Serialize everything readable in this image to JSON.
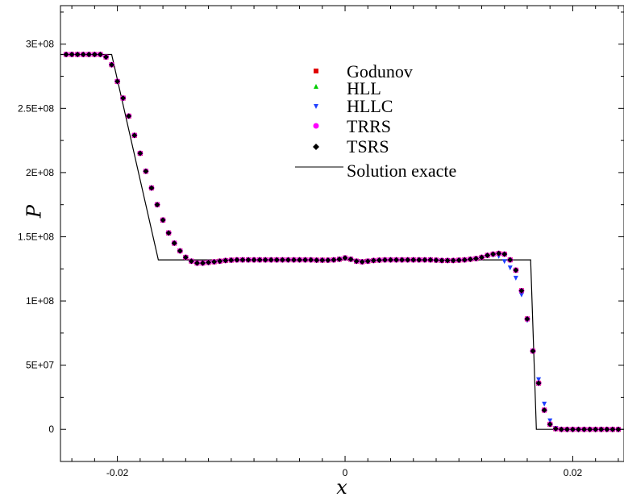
{
  "chart_data": {
    "type": "scatter",
    "title": "",
    "xlabel": "x",
    "ylabel": "P",
    "xlim": [
      -0.025,
      0.0245
    ],
    "ylim": [
      -25000000,
      330000000
    ],
    "grid": false,
    "legend_position": "top-center",
    "x_ticks": [
      {
        "value": -0.02,
        "label": "-0.02"
      },
      {
        "value": 0,
        "label": "0"
      },
      {
        "value": 0.02,
        "label": "0.02"
      }
    ],
    "y_ticks": [
      {
        "value": 0,
        "label": "0"
      },
      {
        "value": 50000000,
        "label": "5E+07"
      },
      {
        "value": 100000000,
        "label": "1E+08"
      },
      {
        "value": 150000000,
        "label": "1.5E+08"
      },
      {
        "value": 200000000,
        "label": "2E+08"
      },
      {
        "value": 250000000,
        "label": "2.5E+08"
      },
      {
        "value": 300000000,
        "label": "3E+08"
      }
    ],
    "series": [
      {
        "name": "Godunov",
        "marker": "square",
        "color": "#e00000"
      },
      {
        "name": "HLL",
        "marker": "triangle-up",
        "color": "#00cc00"
      },
      {
        "name": "HLLC",
        "marker": "triangle-down",
        "color": "#2040ff"
      },
      {
        "name": "TRRS",
        "marker": "circle",
        "color": "#ff00ff"
      },
      {
        "name": "TSRS",
        "marker": "diamond",
        "color": "#000000"
      },
      {
        "name": "Solution exacte",
        "marker": "line",
        "color": "#000000"
      }
    ],
    "points": {
      "x": [
        -0.0245,
        -0.024,
        -0.0235,
        -0.023,
        -0.0225,
        -0.022,
        -0.0215,
        -0.021,
        -0.0205,
        -0.02,
        -0.0195,
        -0.019,
        -0.0185,
        -0.018,
        -0.0175,
        -0.017,
        -0.0165,
        -0.016,
        -0.0155,
        -0.015,
        -0.0145,
        -0.014,
        -0.0135,
        -0.013,
        -0.0125,
        -0.012,
        -0.0115,
        -0.011,
        -0.0105,
        -0.01,
        -0.0095,
        -0.009,
        -0.0085,
        -0.008,
        -0.0075,
        -0.007,
        -0.0065,
        -0.006,
        -0.0055,
        -0.005,
        -0.0045,
        -0.004,
        -0.0035,
        -0.003,
        -0.0025,
        -0.002,
        -0.0015,
        -0.001,
        -0.0005,
        0.0,
        0.0005,
        0.001,
        0.0015,
        0.002,
        0.0025,
        0.003,
        0.0035,
        0.004,
        0.0045,
        0.005,
        0.0055,
        0.006,
        0.0065,
        0.007,
        0.0075,
        0.008,
        0.0085,
        0.009,
        0.0095,
        0.01,
        0.0105,
        0.011,
        0.0115,
        0.012,
        0.0125,
        0.013,
        0.0135,
        0.014,
        0.0145,
        0.015,
        0.0155,
        0.016,
        0.0165,
        0.017,
        0.0175,
        0.018,
        0.0185,
        0.019,
        0.0195,
        0.02,
        0.0205,
        0.021,
        0.0215,
        0.022,
        0.0225,
        0.023,
        0.0235,
        0.024
      ],
      "P": [
        292000000,
        292000000,
        292000000,
        292000000,
        292000000,
        292000000,
        292000000,
        290000000,
        284000000,
        271000000,
        258000000,
        244000000,
        229000000,
        215000000,
        201000000,
        188000000,
        175000000,
        163000000,
        153000000,
        145000000,
        139000000,
        134000000,
        131000000,
        129500000,
        129500000,
        130000000,
        130500000,
        131000000,
        131500000,
        131800000,
        132000000,
        132000000,
        132000000,
        132000000,
        132000000,
        132000000,
        132000000,
        132000000,
        132000000,
        132000000,
        132000000,
        132000000,
        132000000,
        132000000,
        131800000,
        131800000,
        131800000,
        132000000,
        132500000,
        133500000,
        132500000,
        131000000,
        130500000,
        131000000,
        131500000,
        131800000,
        132000000,
        132000000,
        132000000,
        132000000,
        132000000,
        132000000,
        132000000,
        132000000,
        132000000,
        131800000,
        131500000,
        131500000,
        131500000,
        131800000,
        132000000,
        132500000,
        133000000,
        134000000,
        135500000,
        136500000,
        137000000,
        136500000,
        132000000,
        124000000,
        108000000,
        86000000,
        61000000,
        36000000,
        15000000,
        4000000,
        500000,
        0,
        0,
        0,
        0,
        0,
        0,
        0,
        0,
        0,
        0,
        0
      ],
      "P_hllc": [
        292000000,
        292000000,
        292000000,
        292000000,
        292000000,
        292000000,
        292000000,
        290000000,
        284000000,
        271000000,
        258000000,
        244000000,
        229000000,
        215000000,
        201000000,
        188000000,
        175000000,
        163000000,
        153000000,
        145000000,
        139000000,
        134000000,
        131000000,
        129500000,
        129500000,
        130000000,
        130500000,
        131000000,
        131500000,
        131800000,
        132000000,
        132000000,
        132000000,
        132000000,
        132000000,
        132000000,
        132000000,
        132000000,
        132000000,
        132000000,
        132000000,
        132000000,
        132000000,
        132000000,
        131800000,
        131800000,
        131800000,
        132000000,
        132500000,
        133500000,
        132500000,
        131000000,
        130500000,
        131000000,
        131500000,
        131800000,
        132000000,
        132000000,
        132000000,
        132000000,
        132000000,
        132000000,
        132000000,
        132000000,
        132000000,
        131800000,
        131500000,
        131500000,
        131500000,
        131800000,
        132000000,
        132500000,
        133000000,
        134000000,
        135500000,
        136000000,
        135000000,
        131000000,
        126000000,
        118000000,
        105000000,
        85000000,
        61000000,
        39000000,
        20000000,
        7000000,
        1000000,
        0,
        0,
        0,
        0,
        0,
        0,
        0,
        0,
        0,
        0,
        0
      ]
    },
    "exact": {
      "x": [
        -0.025,
        -0.0205,
        -0.0164,
        0.0163,
        0.0168,
        0.0245
      ],
      "P": [
        292000000,
        292000000,
        132000000,
        132000000,
        0,
        0
      ]
    }
  }
}
